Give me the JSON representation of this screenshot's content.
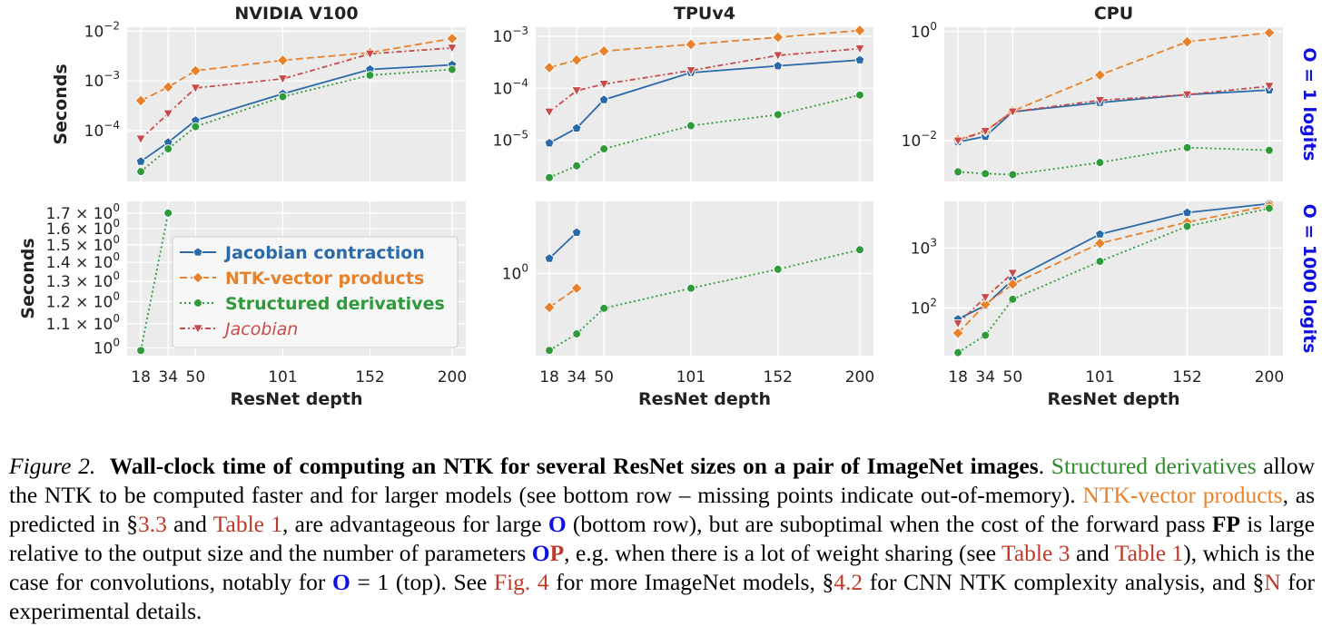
{
  "colors": {
    "jacobian_contraction": "#2a6aa8",
    "ntk_vector_products": "#e8822a",
    "structured_derivatives": "#2e9a3a",
    "jacobian": "#c94a4a",
    "panel_bg": "#ebebeb",
    "row_label": "#1010e0",
    "caption_green": "#2e8b2e",
    "caption_orange": "#e8822a",
    "caption_red": "#c0392b",
    "caption_blue": "#1010e0"
  },
  "legend": {
    "items": [
      {
        "key": "jacobian_contraction",
        "label": "Jacobian contraction",
        "marker": "pentagon",
        "dash": "solid",
        "italic": false
      },
      {
        "key": "ntk_vector_products",
        "label": "NTK-vector products",
        "marker": "diamond",
        "dash": "dashed",
        "italic": false
      },
      {
        "key": "structured_derivatives",
        "label": "Structured derivatives",
        "marker": "circle",
        "dash": "dotted",
        "italic": false
      },
      {
        "key": "jacobian",
        "label": "Jacobian",
        "marker": "triangle-down",
        "dash": "dashdot",
        "italic": true
      }
    ]
  },
  "row_labels": [
    "O = 1 logits",
    "O = 1000 logits"
  ],
  "chart_data": [
    {
      "type": "line",
      "title": "NVIDIA V100",
      "xlabel": "",
      "ylabel": "Seconds",
      "log_y": true,
      "grid": true,
      "x": [
        18,
        34,
        50,
        101,
        152,
        200
      ],
      "xlim": [
        10,
        208
      ],
      "ylim": [
        9.5e-06,
        0.012
      ],
      "y_ticks": [
        {
          "v": 0.0001,
          "base": "10",
          "exp": "−4"
        },
        {
          "v": 0.001,
          "base": "10",
          "exp": "−3"
        },
        {
          "v": 0.01,
          "base": "10",
          "exp": "−2"
        }
      ],
      "x_ticks": [],
      "series": [
        {
          "key": "jacobian_contraction",
          "values": [
            2.4e-05,
            5.8e-05,
            0.00016,
            0.00055,
            0.0017,
            0.0021
          ]
        },
        {
          "key": "ntk_vector_products",
          "values": [
            0.0004,
            0.00075,
            0.0016,
            0.0026,
            0.0037,
            0.0071
          ]
        },
        {
          "key": "structured_derivatives",
          "values": [
            1.5e-05,
            4.3e-05,
            0.00012,
            0.00048,
            0.0013,
            0.0017
          ]
        },
        {
          "key": "jacobian",
          "values": [
            6.8e-05,
            0.00022,
            0.00072,
            0.0011,
            0.0035,
            0.0046
          ]
        }
      ]
    },
    {
      "type": "line",
      "title": "TPUv4",
      "xlabel": "",
      "ylabel": "",
      "log_y": true,
      "grid": true,
      "x": [
        18,
        34,
        50,
        101,
        152,
        200
      ],
      "xlim": [
        10,
        208
      ],
      "ylim": [
        1.6e-06,
        0.0015
      ],
      "y_ticks": [
        {
          "v": 1e-05,
          "base": "10",
          "exp": "−5"
        },
        {
          "v": 0.0001,
          "base": "10",
          "exp": "−4"
        },
        {
          "v": 0.001,
          "base": "10",
          "exp": "−3"
        }
      ],
      "x_ticks": [],
      "series": [
        {
          "key": "jacobian_contraction",
          "values": [
            8.8e-06,
            1.7e-05,
            6e-05,
            0.0002,
            0.00027,
            0.00035
          ]
        },
        {
          "key": "ntk_vector_products",
          "values": [
            0.00025,
            0.00035,
            0.00052,
            0.0007,
            0.00096,
            0.0013
          ]
        },
        {
          "key": "structured_derivatives",
          "values": [
            1.9e-06,
            3.2e-06,
            6.8e-06,
            1.9e-05,
            3.1e-05,
            7.4e-05
          ]
        },
        {
          "key": "jacobian",
          "values": [
            3.5e-05,
            9e-05,
            0.00012,
            0.00022,
            0.00043,
            0.00058
          ]
        }
      ]
    },
    {
      "type": "line",
      "title": "CPU",
      "xlabel": "",
      "ylabel": "",
      "log_y": true,
      "grid": true,
      "x": [
        18,
        34,
        50,
        101,
        152,
        200
      ],
      "xlim": [
        10,
        208
      ],
      "ylim": [
        0.0018,
        1.2
      ],
      "y_ticks": [
        {
          "v": 0.01,
          "base": "10",
          "exp": "−2"
        },
        {
          "v": 1,
          "base": "10",
          "exp": "0"
        }
      ],
      "x_ticks": [],
      "series": [
        {
          "key": "jacobian_contraction",
          "values": [
            0.0095,
            0.012,
            0.034,
            0.05,
            0.07,
            0.085
          ]
        },
        {
          "key": "ntk_vector_products",
          "values": [
            0.0105,
            0.015,
            0.035,
            0.16,
            0.65,
            0.95
          ]
        },
        {
          "key": "structured_derivatives",
          "values": [
            0.0027,
            0.0025,
            0.0024,
            0.004,
            0.0075,
            0.0067
          ]
        },
        {
          "key": "jacobian",
          "values": [
            0.01,
            0.015,
            0.034,
            0.055,
            0.07,
            0.1
          ]
        }
      ]
    },
    {
      "type": "line",
      "title": "",
      "xlabel": "ResNet depth",
      "ylabel": "Seconds",
      "log_y": true,
      "grid": true,
      "x": [
        18,
        34,
        50,
        101,
        152,
        200
      ],
      "xlim": [
        10,
        208
      ],
      "ylim": [
        0.97,
        1.78
      ],
      "y_ticks": [
        {
          "v": 1.0,
          "base": "10",
          "exp": "0",
          "mant": ""
        },
        {
          "v": 1.1,
          "base": "10",
          "exp": "0",
          "mant": "1.1 × "
        },
        {
          "v": 1.2,
          "base": "10",
          "exp": "0",
          "mant": "1.2 × "
        },
        {
          "v": 1.3,
          "base": "10",
          "exp": "0",
          "mant": "1.3 × "
        },
        {
          "v": 1.4,
          "base": "10",
          "exp": "0",
          "mant": "1.4 × "
        },
        {
          "v": 1.5,
          "base": "10",
          "exp": "0",
          "mant": "1.5 × "
        },
        {
          "v": 1.6,
          "base": "10",
          "exp": "0",
          "mant": "1.6 × "
        },
        {
          "v": 1.7,
          "base": "10",
          "exp": "0",
          "mant": "1.7 × "
        }
      ],
      "x_ticks": [
        "18",
        "34",
        "50",
        "101",
        "152",
        "200"
      ],
      "legend_position": "center",
      "series": [
        {
          "key": "structured_derivatives",
          "values": [
            0.99,
            1.7,
            null,
            null,
            null,
            null
          ]
        }
      ]
    },
    {
      "type": "line",
      "title": "",
      "xlabel": "ResNet depth",
      "ylabel": "",
      "log_y": true,
      "grid": true,
      "x": [
        18,
        34,
        50,
        101,
        152,
        200
      ],
      "xlim": [
        10,
        208
      ],
      "ylim": [
        0.16,
        5.0
      ],
      "y_ticks": [
        {
          "v": 1,
          "base": "10",
          "exp": "0"
        }
      ],
      "x_ticks": [
        "18",
        "34",
        "50",
        "101",
        "152",
        "200"
      ],
      "series": [
        {
          "key": "jacobian_contraction",
          "values": [
            1.4,
            2.5,
            null,
            null,
            null,
            null
          ]
        },
        {
          "key": "ntk_vector_products",
          "values": [
            0.47,
            0.72,
            null,
            null,
            null,
            null
          ]
        },
        {
          "key": "structured_derivatives",
          "values": [
            0.18,
            0.26,
            0.46,
            0.72,
            1.1,
            1.7
          ]
        }
      ]
    },
    {
      "type": "line",
      "title": "",
      "xlabel": "ResNet depth",
      "ylabel": "",
      "log_y": true,
      "grid": true,
      "x": [
        18,
        34,
        50,
        101,
        152,
        200
      ],
      "xlim": [
        10,
        208
      ],
      "ylim": [
        16,
        6000
      ],
      "y_ticks": [
        {
          "v": 100,
          "base": "10",
          "exp": "2"
        },
        {
          "v": 1000,
          "base": "10",
          "exp": "3"
        }
      ],
      "x_ticks": [
        "18",
        "34",
        "50",
        "101",
        "152",
        "200"
      ],
      "series": [
        {
          "key": "jacobian_contraction",
          "values": [
            65,
            110,
            300,
            1700,
            3900,
            5500
          ]
        },
        {
          "key": "ntk_vector_products",
          "values": [
            38,
            115,
            250,
            1200,
            2700,
            5100
          ]
        },
        {
          "key": "structured_derivatives",
          "values": [
            18,
            35,
            140,
            600,
            2300,
            4600
          ]
        },
        {
          "key": "jacobian",
          "values": [
            55,
            150,
            380,
            null,
            null,
            null
          ]
        }
      ]
    }
  ],
  "caption": {
    "fig_label": "Figure 2.",
    "bold_title": "Wall-clock time of computing an NTK for several ResNet sizes on a pair of ImageNet images",
    "t_period": ". ",
    "green_1": "Structured derivatives",
    "t1": " allow the NTK to be computed faster and for larger models (see bottom row – missing points indicate out-of-memory). ",
    "orange_1": "NTK-vector products",
    "t2": ", as predicted in §",
    "ref_33": "3.3",
    "t3": " and ",
    "ref_table1_a": "Table 1",
    "t4": ", are advantageous for large ",
    "O_1": "O",
    "t5": " (bottom row), but are suboptimal when the cost of the forward pass ",
    "FP": "FP",
    "t6": " is large relative to the output size and the number of parameters ",
    "OP_O": "O",
    "OP_P": "P",
    "t7": ", e.g. when there is a lot of weight sharing (see ",
    "ref_table3": "Table 3",
    "t8": " and ",
    "ref_table1_b": "Table 1",
    "t9": "), which is the case for convolutions, notably for ",
    "O_2": "O",
    "t10": " = 1 (top). See ",
    "ref_fig4": "Fig. 4",
    "t11": " for more ImageNet models, §",
    "ref_42": "4.2",
    "t12": " for CNN NTK complexity analysis, and §",
    "ref_N": "N",
    "t13": " for experimental details."
  }
}
